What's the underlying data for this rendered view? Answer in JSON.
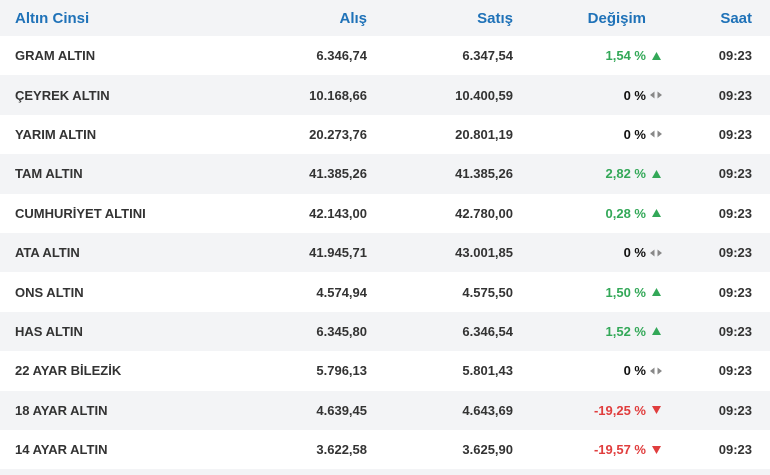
{
  "header": {
    "name": "Altın Cinsi",
    "buy": "Alış",
    "sell": "Satış",
    "change": "Değişim",
    "time": "Saat"
  },
  "colors": {
    "header": "#1f72b8",
    "up": "#33a858",
    "down": "#e03d3d",
    "flat": "#111111"
  },
  "rows": [
    {
      "name": "GRAM ALTIN",
      "buy": "6.346,74",
      "sell": "6.347,54",
      "change": "1,54 %",
      "trend": "up",
      "icon": "arrow-up-icon",
      "time": "09:23"
    },
    {
      "name": "ÇEYREK ALTIN",
      "buy": "10.168,66",
      "sell": "10.400,59",
      "change": "0 %",
      "trend": "flat",
      "icon": "left-right-arrows-icon",
      "time": "09:23"
    },
    {
      "name": "YARIM ALTIN",
      "buy": "20.273,76",
      "sell": "20.801,19",
      "change": "0 %",
      "trend": "flat",
      "icon": "left-right-arrows-icon",
      "time": "09:23"
    },
    {
      "name": "TAM ALTIN",
      "buy": "41.385,26",
      "sell": "41.385,26",
      "change": "2,82 %",
      "trend": "up",
      "icon": "arrow-up-icon",
      "time": "09:23"
    },
    {
      "name": "CUMHURİYET ALTINI",
      "buy": "42.143,00",
      "sell": "42.780,00",
      "change": "0,28 %",
      "trend": "up",
      "icon": "arrow-up-icon",
      "time": "09:23"
    },
    {
      "name": "ATA ALTIN",
      "buy": "41.945,71",
      "sell": "43.001,85",
      "change": "0 %",
      "trend": "flat",
      "icon": "left-right-arrows-icon",
      "time": "09:23"
    },
    {
      "name": "ONS ALTIN",
      "buy": "4.574,94",
      "sell": "4.575,50",
      "change": "1,50 %",
      "trend": "up",
      "icon": "arrow-up-icon",
      "time": "09:23"
    },
    {
      "name": "HAS ALTIN",
      "buy": "6.345,80",
      "sell": "6.346,54",
      "change": "1,52 %",
      "trend": "up",
      "icon": "arrow-up-icon",
      "time": "09:23"
    },
    {
      "name": "22 AYAR BİLEZİK",
      "buy": "5.796,13",
      "sell": "5.801,43",
      "change": "0 %",
      "trend": "flat",
      "icon": "left-right-arrows-icon",
      "time": "09:23"
    },
    {
      "name": "18 AYAR ALTIN",
      "buy": "4.639,45",
      "sell": "4.643,69",
      "change": "-19,25 %",
      "trend": "down",
      "icon": "arrow-down-icon",
      "time": "09:23"
    },
    {
      "name": "14 AYAR ALTIN",
      "buy": "3.622,58",
      "sell": "3.625,90",
      "change": "-19,57 %",
      "trend": "down",
      "icon": "arrow-down-icon",
      "time": "09:23"
    }
  ]
}
